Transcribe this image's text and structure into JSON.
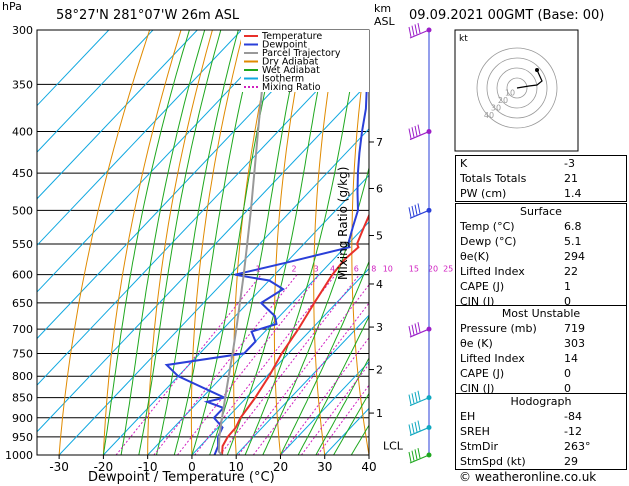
{
  "header": {
    "location": "58°27'N  281°07'W  26m  ASL",
    "datetime": "09.09.2021  00GMT  (Base: 00)",
    "hpa_label": "hPa",
    "km_label": "km",
    "asl_label": "ASL"
  },
  "footer": {
    "copyright": "© weatheronline.co.uk"
  },
  "chart_data": {
    "type": "line",
    "subtype": "skew-t log-p",
    "xlabel": "Dewpoint / Temperature (°C)",
    "ylabel_right": "Mixing Ratio (g/kg)",
    "x_ticks": [
      -30,
      -20,
      -10,
      0,
      10,
      20,
      30,
      40
    ],
    "xlim": [
      -35,
      40
    ],
    "pressure_levels": [
      300,
      350,
      400,
      450,
      500,
      550,
      600,
      650,
      700,
      750,
      800,
      850,
      900,
      950,
      1000
    ],
    "km_ticks": [
      {
        "km": "1",
        "p": 888
      },
      {
        "km": "2",
        "p": 785
      },
      {
        "km": "3",
        "p": 696
      },
      {
        "km": "4",
        "p": 616
      },
      {
        "km": "5",
        "p": 537
      },
      {
        "km": "6",
        "p": 470
      },
      {
        "km": "7",
        "p": 412
      }
    ],
    "lcl": {
      "label": "LCL",
      "p": 990
    },
    "mixing_ratio_labels": [
      "1",
      "2",
      "3",
      "4",
      "6",
      "8",
      "10",
      "15",
      "20",
      "25"
    ],
    "legend": [
      {
        "name": "Temperature",
        "color": "#e8302a"
      },
      {
        "name": "Dewpoint",
        "color": "#2a3fd8"
      },
      {
        "name": "Parcel Trajectory",
        "color": "#999999"
      },
      {
        "name": "Dry Adiabat",
        "color": "#e08a00"
      },
      {
        "name": "Wet Adiabat",
        "color": "#1fa81f"
      },
      {
        "name": "Isotherm",
        "color": "#10a8e0"
      },
      {
        "name": "Mixing Ratio",
        "color": "#d020c0"
      }
    ],
    "series": [
      {
        "name": "Temperature",
        "color": "#e8302a",
        "points": [
          [
            1000,
            6.8
          ],
          [
            975,
            5.0
          ],
          [
            950,
            4.2
          ],
          [
            925,
            4.0
          ],
          [
            900,
            3.0
          ],
          [
            875,
            2.5
          ],
          [
            850,
            2.0
          ],
          [
            800,
            0.5
          ],
          [
            750,
            -1.5
          ],
          [
            700,
            -3.0
          ],
          [
            650,
            -5.0
          ],
          [
            600,
            -7.0
          ],
          [
            575,
            -7.5
          ],
          [
            555,
            -7.0
          ],
          [
            550,
            -8.0
          ],
          [
            525,
            -10.0
          ],
          [
            500,
            -12.0
          ],
          [
            475,
            -15.0
          ],
          [
            450,
            -18.5
          ],
          [
            425,
            -22.0
          ],
          [
            400,
            -25.0
          ],
          [
            375,
            -29.0
          ],
          [
            350,
            -33.5
          ],
          [
            325,
            -38.0
          ],
          [
            300,
            -42.5
          ]
        ]
      },
      {
        "name": "Dewpoint",
        "color": "#2a3fd8",
        "points": [
          [
            1000,
            5.1
          ],
          [
            975,
            4.0
          ],
          [
            950,
            2.0
          ],
          [
            925,
            1.0
          ],
          [
            900,
            -3.0
          ],
          [
            875,
            -3.0
          ],
          [
            860,
            -8.0
          ],
          [
            850,
            -5.0
          ],
          [
            800,
            -20.0
          ],
          [
            775,
            -25.0
          ],
          [
            750,
            -10.0
          ],
          [
            725,
            -10.0
          ],
          [
            705,
            -13.0
          ],
          [
            690,
            -9.0
          ],
          [
            675,
            -11.0
          ],
          [
            650,
            -17.0
          ],
          [
            625,
            -15.0
          ],
          [
            610,
            -20.0
          ],
          [
            600,
            -29.0
          ],
          [
            580,
            -20.0
          ],
          [
            555,
            -9.0
          ],
          [
            550,
            -10.0
          ],
          [
            525,
            -12.5
          ],
          [
            500,
            -15.0
          ],
          [
            475,
            -19.0
          ],
          [
            450,
            -23.0
          ],
          [
            425,
            -27.0
          ],
          [
            400,
            -31.0
          ],
          [
            375,
            -35.0
          ],
          [
            350,
            -40.0
          ],
          [
            325,
            -45.0
          ],
          [
            300,
            -50.0
          ]
        ]
      },
      {
        "name": "Parcel Trajectory",
        "color": "#999999",
        "points": [
          [
            1000,
            6.8
          ],
          [
            990,
            5.3
          ],
          [
            950,
            2.3
          ],
          [
            900,
            -1.2
          ],
          [
            850,
            -4.8
          ],
          [
            800,
            -8.6
          ],
          [
            750,
            -12.6
          ],
          [
            700,
            -17.0
          ],
          [
            650,
            -21.8
          ],
          [
            600,
            -27.0
          ],
          [
            550,
            -32.8
          ],
          [
            500,
            -39.2
          ],
          [
            450,
            -46.4
          ],
          [
            400,
            -54.5
          ],
          [
            350,
            -63.6
          ],
          [
            300,
            -74.0
          ]
        ]
      }
    ],
    "wind_barbs": [
      {
        "p": 300,
        "color": "#9b1fc8"
      },
      {
        "p": 400,
        "color": "#9b1fc8"
      },
      {
        "p": 500,
        "color": "#2a3fd8"
      },
      {
        "p": 700,
        "color": "#9b1fc8"
      },
      {
        "p": 850,
        "color": "#10a8c0"
      },
      {
        "p": 925,
        "color": "#10a8c0"
      },
      {
        "p": 1000,
        "color": "#1fa81f"
      }
    ]
  },
  "hodograph": {
    "label": "kt",
    "ring_labels": [
      "10",
      "20",
      "30",
      "40"
    ],
    "points": [
      [
        0,
        0
      ],
      [
        6,
        1
      ],
      [
        12,
        2
      ],
      [
        20,
        3
      ],
      [
        25,
        7
      ],
      [
        20,
        18
      ]
    ]
  },
  "indices": {
    "rows": [
      {
        "label": "K",
        "value": "-3"
      },
      {
        "label": "Totals Totals",
        "value": "21"
      },
      {
        "label": "PW (cm)",
        "value": "1.4"
      }
    ]
  },
  "surface": {
    "title": "Surface",
    "rows": [
      {
        "label": "Temp (°C)",
        "value": "6.8"
      },
      {
        "label": "Dewp (°C)",
        "value": "5.1"
      },
      {
        "label": "θe(K)",
        "value": "294"
      },
      {
        "label": "Lifted Index",
        "value": "22"
      },
      {
        "label": "CAPE (J)",
        "value": "1"
      },
      {
        "label": "CIN (J)",
        "value": "0"
      }
    ]
  },
  "most_unstable": {
    "title": "Most Unstable",
    "rows": [
      {
        "label": "Pressure (mb)",
        "value": "719"
      },
      {
        "label": "θe (K)",
        "value": "303"
      },
      {
        "label": "Lifted Index",
        "value": "14"
      },
      {
        "label": "CAPE (J)",
        "value": "0"
      },
      {
        "label": "CIN (J)",
        "value": "0"
      }
    ]
  },
  "hodograph_table": {
    "title": "Hodograph",
    "rows": [
      {
        "label": "EH",
        "value": "-84"
      },
      {
        "label": "SREH",
        "value": "-12"
      },
      {
        "label": "StmDir",
        "value": "263°"
      },
      {
        "label": "StmSpd (kt)",
        "value": "29"
      }
    ]
  }
}
